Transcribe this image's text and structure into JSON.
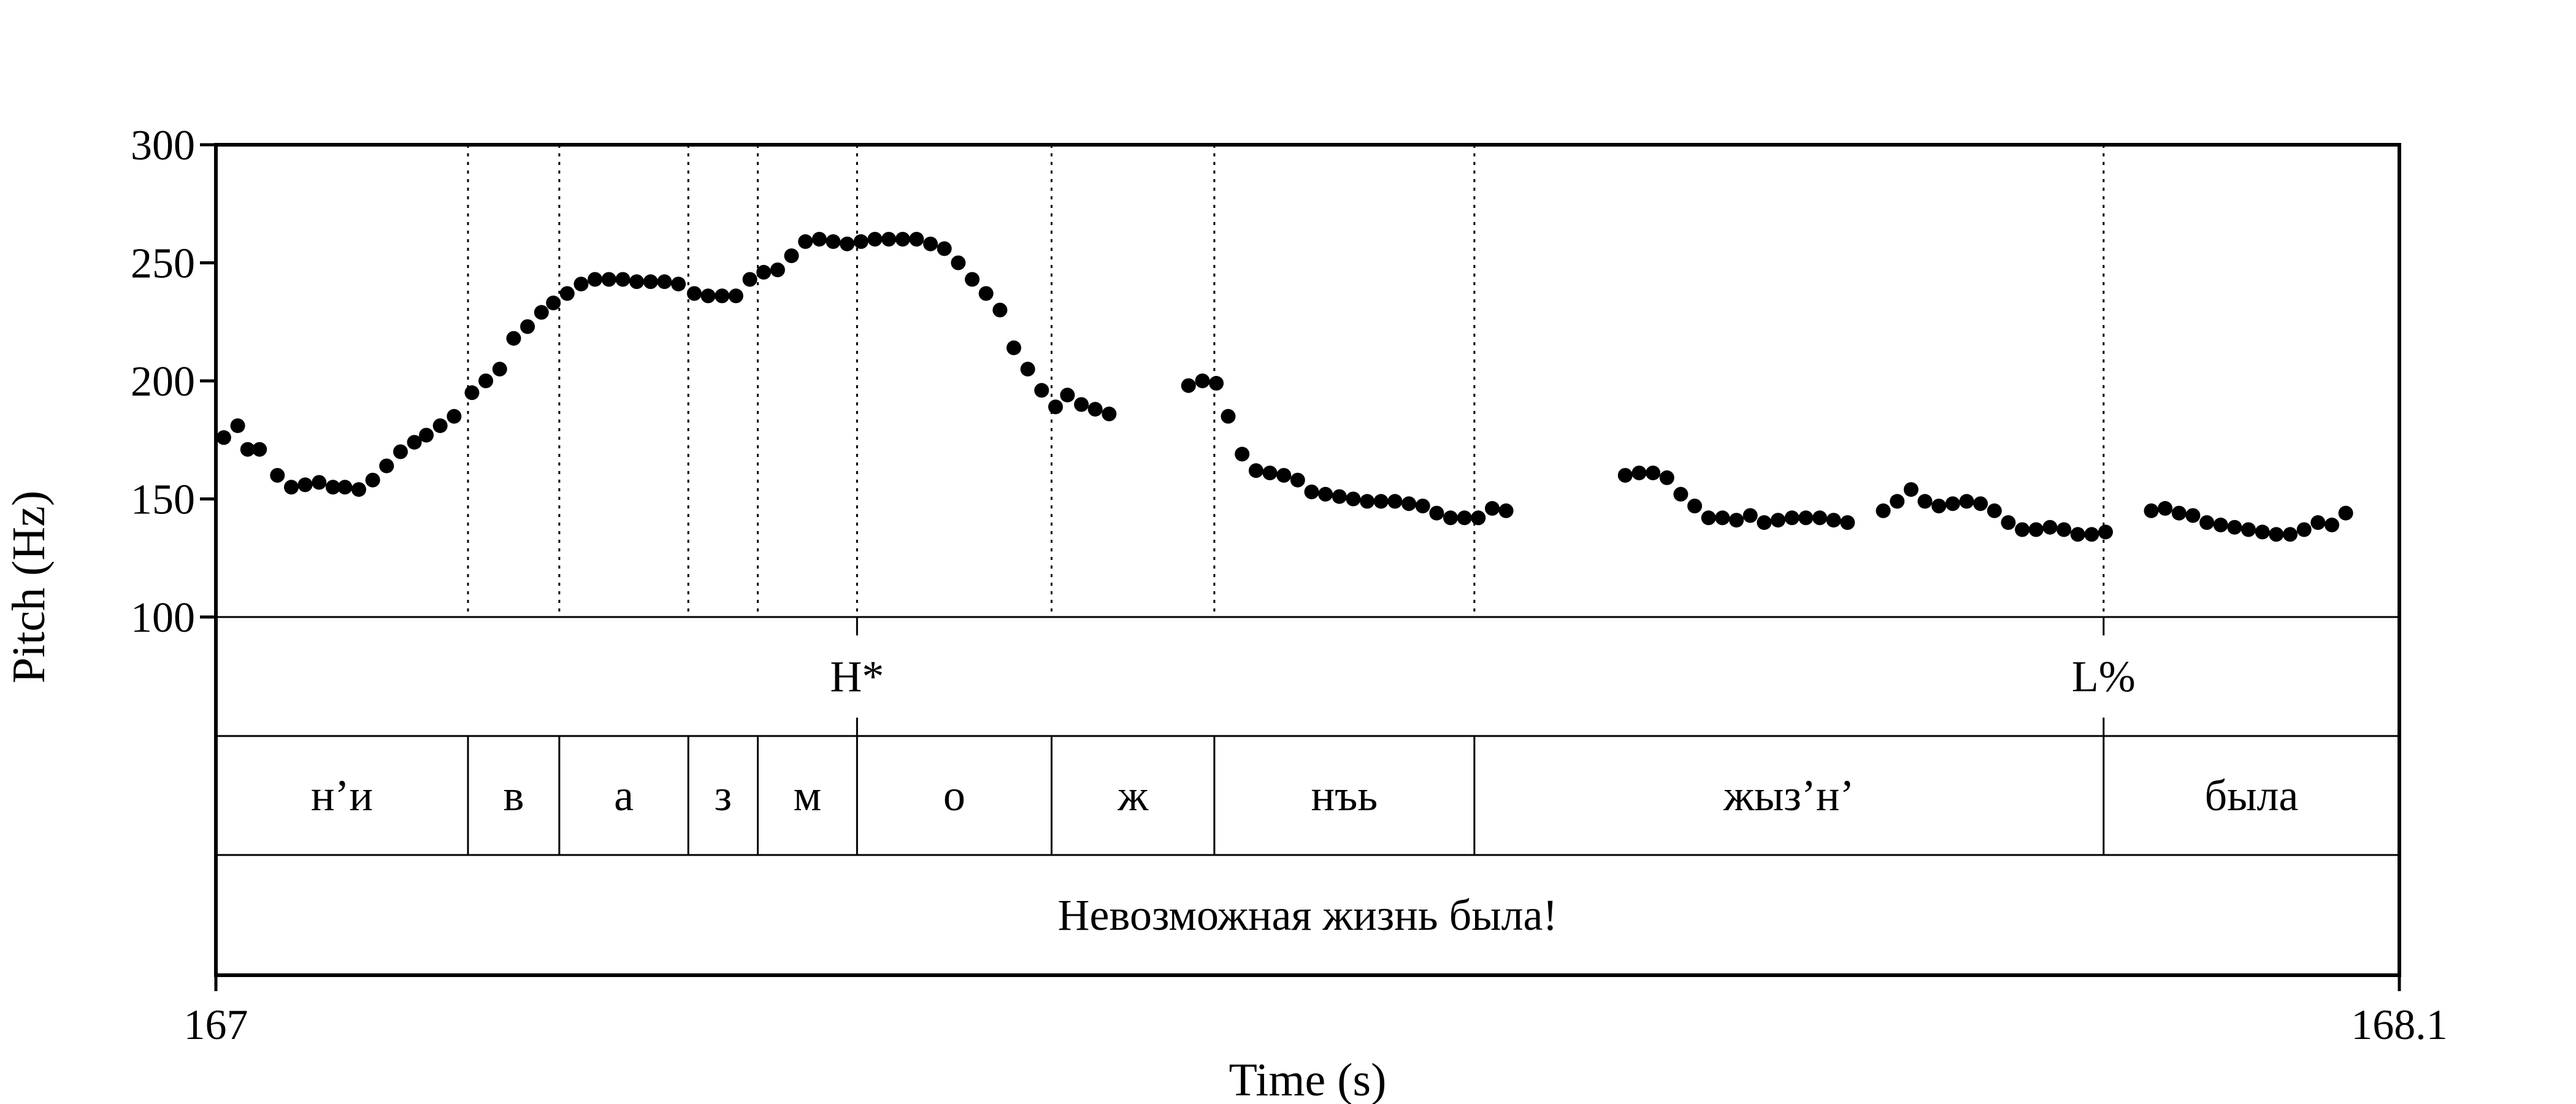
{
  "chart_data": {
    "type": "scatter",
    "xlabel": "Time (s)",
    "ylabel": "Pitch (Hz)",
    "xlim": [
      167.0,
      168.1
    ],
    "ylim": [
      100,
      300
    ],
    "x_tick_labels": [
      "167",
      "168.1"
    ],
    "y_ticks": [
      100,
      150,
      200,
      250,
      300
    ],
    "grid": false,
    "pitch_points": [
      [
        167.004,
        176
      ],
      [
        167.011,
        181
      ],
      [
        167.016,
        171
      ],
      [
        167.022,
        171
      ],
      [
        167.031,
        160
      ],
      [
        167.038,
        155
      ],
      [
        167.045,
        156
      ],
      [
        167.052,
        157
      ],
      [
        167.059,
        155
      ],
      [
        167.065,
        155
      ],
      [
        167.072,
        154
      ],
      [
        167.079,
        158
      ],
      [
        167.086,
        164
      ],
      [
        167.093,
        170
      ],
      [
        167.1,
        174
      ],
      [
        167.106,
        177
      ],
      [
        167.113,
        181
      ],
      [
        167.12,
        185
      ],
      [
        167.129,
        195
      ],
      [
        167.136,
        200
      ],
      [
        167.143,
        205
      ],
      [
        167.15,
        218
      ],
      [
        167.157,
        223
      ],
      [
        167.164,
        229
      ],
      [
        167.17,
        233
      ],
      [
        167.177,
        237
      ],
      [
        167.184,
        241
      ],
      [
        167.191,
        243
      ],
      [
        167.198,
        243
      ],
      [
        167.205,
        243
      ],
      [
        167.212,
        242
      ],
      [
        167.219,
        242
      ],
      [
        167.226,
        242
      ],
      [
        167.233,
        241
      ],
      [
        167.241,
        237
      ],
      [
        167.248,
        236
      ],
      [
        167.255,
        236
      ],
      [
        167.262,
        236
      ],
      [
        167.269,
        243
      ],
      [
        167.276,
        246
      ],
      [
        167.283,
        247
      ],
      [
        167.29,
        253
      ],
      [
        167.297,
        259
      ],
      [
        167.304,
        260
      ],
      [
        167.311,
        259
      ],
      [
        167.318,
        258
      ],
      [
        167.325,
        259
      ],
      [
        167.332,
        260
      ],
      [
        167.339,
        260
      ],
      [
        167.346,
        260
      ],
      [
        167.353,
        260
      ],
      [
        167.36,
        258
      ],
      [
        167.367,
        256
      ],
      [
        167.374,
        250
      ],
      [
        167.381,
        243
      ],
      [
        167.388,
        237
      ],
      [
        167.395,
        230
      ],
      [
        167.402,
        214
      ],
      [
        167.409,
        205
      ],
      [
        167.416,
        196
      ],
      [
        167.423,
        189
      ],
      [
        167.429,
        194
      ],
      [
        167.436,
        190
      ],
      [
        167.443,
        188
      ],
      [
        167.45,
        186
      ],
      [
        167.49,
        198
      ],
      [
        167.497,
        200
      ],
      [
        167.504,
        199
      ],
      [
        167.51,
        185
      ],
      [
        167.517,
        169
      ],
      [
        167.524,
        162
      ],
      [
        167.531,
        161
      ],
      [
        167.538,
        160
      ],
      [
        167.545,
        158
      ],
      [
        167.552,
        153
      ],
      [
        167.559,
        152
      ],
      [
        167.566,
        151
      ],
      [
        167.573,
        150
      ],
      [
        167.58,
        149
      ],
      [
        167.587,
        149
      ],
      [
        167.594,
        149
      ],
      [
        167.601,
        148
      ],
      [
        167.608,
        147
      ],
      [
        167.615,
        144
      ],
      [
        167.622,
        142
      ],
      [
        167.629,
        142
      ],
      [
        167.636,
        142
      ],
      [
        167.643,
        146
      ],
      [
        167.65,
        145
      ],
      [
        167.71,
        160
      ],
      [
        167.717,
        161
      ],
      [
        167.724,
        161
      ],
      [
        167.731,
        159
      ],
      [
        167.738,
        152
      ],
      [
        167.745,
        147
      ],
      [
        167.752,
        142
      ],
      [
        167.759,
        142
      ],
      [
        167.766,
        141
      ],
      [
        167.773,
        143
      ],
      [
        167.78,
        140
      ],
      [
        167.787,
        141
      ],
      [
        167.794,
        142
      ],
      [
        167.801,
        142
      ],
      [
        167.808,
        142
      ],
      [
        167.815,
        141
      ],
      [
        167.822,
        140
      ],
      [
        167.84,
        145
      ],
      [
        167.847,
        149
      ],
      [
        167.854,
        154
      ],
      [
        167.861,
        149
      ],
      [
        167.868,
        147
      ],
      [
        167.875,
        148
      ],
      [
        167.882,
        149
      ],
      [
        167.889,
        148
      ],
      [
        167.896,
        145
      ],
      [
        167.903,
        140
      ],
      [
        167.91,
        137
      ],
      [
        167.917,
        137
      ],
      [
        167.924,
        138
      ],
      [
        167.931,
        137
      ],
      [
        167.938,
        135
      ],
      [
        167.945,
        135
      ],
      [
        167.952,
        136
      ],
      [
        167.975,
        145
      ],
      [
        167.982,
        146
      ],
      [
        167.989,
        144
      ],
      [
        167.996,
        143
      ],
      [
        168.003,
        140
      ],
      [
        168.01,
        139
      ],
      [
        168.017,
        138
      ],
      [
        168.024,
        137
      ],
      [
        168.031,
        136
      ],
      [
        168.038,
        135
      ],
      [
        168.045,
        135
      ],
      [
        168.052,
        137
      ],
      [
        168.059,
        140
      ],
      [
        168.066,
        139
      ],
      [
        168.073,
        144
      ]
    ],
    "boundaries": [
      167.127,
      167.173,
      167.238,
      167.273,
      167.323,
      167.421,
      167.503,
      167.634,
      167.951
    ],
    "tiers": {
      "tones": [
        {
          "time": 167.323,
          "label": "H*"
        },
        {
          "time": 167.951,
          "label": "L%"
        }
      ],
      "segments": [
        {
          "start": 167.0,
          "end": 167.127,
          "label": "н’и"
        },
        {
          "start": 167.127,
          "end": 167.173,
          "label": "в"
        },
        {
          "start": 167.173,
          "end": 167.238,
          "label": "а"
        },
        {
          "start": 167.238,
          "end": 167.273,
          "label": "з"
        },
        {
          "start": 167.273,
          "end": 167.323,
          "label": "м"
        },
        {
          "start": 167.323,
          "end": 167.421,
          "label": "о"
        },
        {
          "start": 167.421,
          "end": 167.503,
          "label": "ж"
        },
        {
          "start": 167.503,
          "end": 167.634,
          "label": "нъь"
        },
        {
          "start": 167.634,
          "end": 167.951,
          "label": "жыз’н’"
        },
        {
          "start": 167.951,
          "end": 168.1,
          "label": "была"
        }
      ],
      "sentence": "Невозможная жизнь была!"
    },
    "colors": {
      "points": "#000000",
      "axes": "#000000",
      "background": "#ffffff"
    }
  }
}
